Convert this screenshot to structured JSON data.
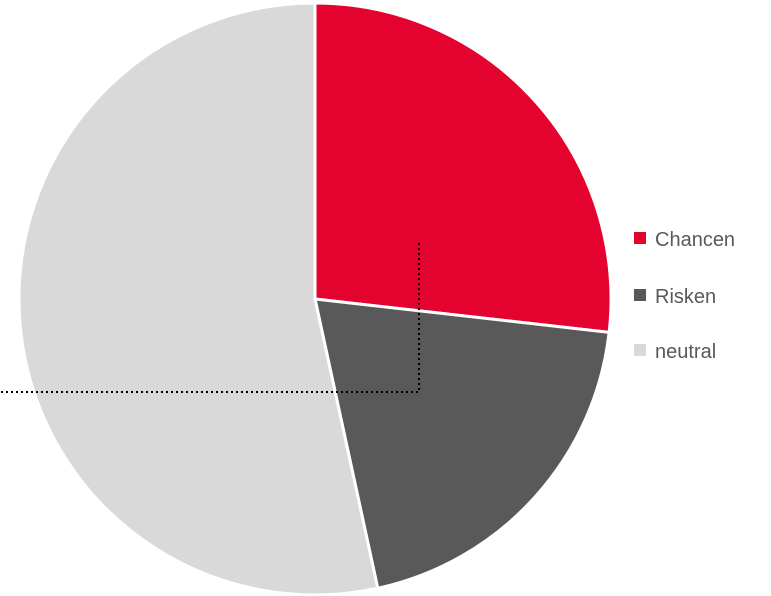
{
  "chart_data": {
    "type": "pie",
    "title": "",
    "slices": [
      {
        "label": "Chancen",
        "value": 26.8,
        "color": "#E4032E"
      },
      {
        "label": "Risken",
        "value": 19.8,
        "color": "#595959"
      },
      {
        "label": "neutral",
        "value": 53.4,
        "color": "#D9D9D9"
      }
    ],
    "start_angle_deg": 0,
    "direction": "clockwise",
    "legend_position": "right"
  }
}
